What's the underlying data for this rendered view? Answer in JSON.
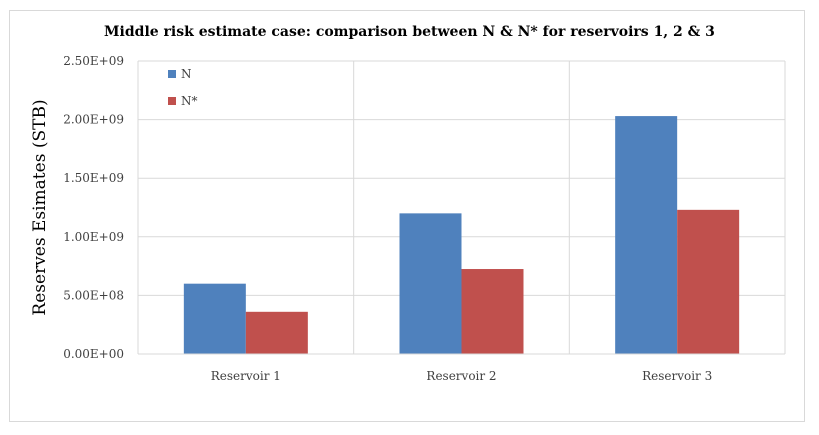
{
  "chart_data": {
    "type": "bar",
    "title": "Middle risk estimate case:  comparison between N & N* for reservoirs 1, 2 & 3",
    "xlabel": "",
    "ylabel": "Reserves Esimates (STB)",
    "categories": [
      "Reservoir 1",
      "Reservoir 2",
      "Reservoir 3"
    ],
    "series": [
      {
        "name": "N",
        "color": "#4f81bd",
        "values": [
          600000000,
          1200000000,
          2030000000
        ]
      },
      {
        "name": "N*",
        "color": "#c0504d",
        "values": [
          360000000,
          725000000,
          1230000000
        ]
      }
    ],
    "ylim": [
      0,
      2500000000
    ],
    "yticks": [
      0,
      500000000,
      1000000000,
      1500000000,
      2000000000,
      2500000000
    ],
    "ytick_labels": [
      "0.00E+00",
      "5.00E+08",
      "1.00E+09",
      "1.50E+09",
      "2.00E+09",
      "2.50E+09"
    ],
    "grid": true,
    "legend_position": "top-left"
  }
}
